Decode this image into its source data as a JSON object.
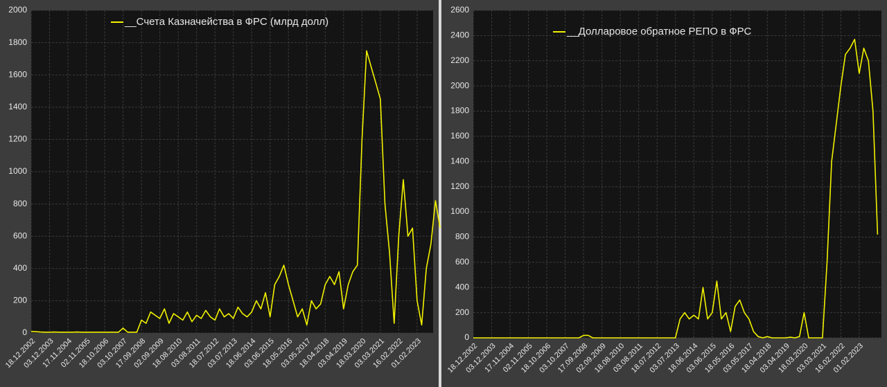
{
  "chart_data": [
    {
      "type": "line",
      "categories": [
        "18.12.2002",
        null,
        null,
        null,
        "03.12.2003",
        null,
        null,
        null,
        "17.11.2004",
        null,
        null,
        null,
        "02.11.2005",
        null,
        null,
        null,
        "18.10.2006",
        null,
        null,
        null,
        "03.10.2007",
        null,
        null,
        null,
        "17.09.2008",
        null,
        null,
        null,
        "02.09.2009",
        null,
        null,
        null,
        "18.08.2010",
        null,
        null,
        null,
        "03.08.2011",
        null,
        null,
        null,
        "18.07.2012",
        null,
        null,
        null,
        "03.07.2013",
        null,
        null,
        null,
        "18.06.2014",
        null,
        null,
        null,
        "03.06.2015",
        null,
        null,
        null,
        "18.05.2016",
        null,
        null,
        null,
        "03.05.2017",
        null,
        null,
        null,
        "18.04.2018",
        null,
        null,
        null,
        "03.04.2019",
        null,
        null,
        null,
        "18.03.2020",
        null,
        null,
        null,
        "03.03.2021",
        null,
        null,
        null,
        "16.02.2022",
        null,
        null,
        null,
        "01.02.2023",
        null,
        null,
        null,
        null,
        null
      ],
      "series": [
        {
          "name": "__Счета Казначейства в ФРС (млрд долл)",
          "color": "#f2f200",
          "values": [
            10,
            8,
            6,
            5,
            5,
            6,
            5,
            5,
            5,
            5,
            6,
            5,
            5,
            5,
            5,
            5,
            5,
            5,
            5,
            5,
            30,
            5,
            5,
            5,
            80,
            60,
            130,
            110,
            90,
            150,
            60,
            120,
            100,
            80,
            130,
            70,
            110,
            90,
            140,
            100,
            80,
            150,
            100,
            120,
            90,
            160,
            120,
            100,
            130,
            200,
            150,
            250,
            100,
            300,
            350,
            420,
            300,
            200,
            100,
            150,
            50,
            200,
            150,
            180,
            300,
            350,
            300,
            380,
            150,
            300,
            380,
            420,
            1200,
            1750,
            1650,
            1550,
            1450,
            800,
            500,
            60,
            600,
            950,
            600,
            650,
            200,
            50,
            400,
            550,
            820,
            650
          ]
        }
      ],
      "ylim": [
        0,
        2000
      ],
      "yticks": [
        0,
        200,
        400,
        600,
        800,
        1000,
        1200,
        1400,
        1600,
        1800,
        2000
      ],
      "grid": true
    },
    {
      "type": "line",
      "categories": [
        "18.12.2002",
        null,
        null,
        null,
        "03.12.2003",
        null,
        null,
        null,
        "17.11.2004",
        null,
        null,
        null,
        "02.11.2005",
        null,
        null,
        null,
        "18.10.2006",
        null,
        null,
        null,
        "03.10.2007",
        null,
        null,
        null,
        "17.09.2008",
        null,
        null,
        null,
        "02.09.2009",
        null,
        null,
        null,
        "18.08.2010",
        null,
        null,
        null,
        "03.08.2011",
        null,
        null,
        null,
        "18.07.2012",
        null,
        null,
        null,
        "03.07.2013",
        null,
        null,
        null,
        "18.06.2014",
        null,
        null,
        null,
        "03.06.2015",
        null,
        null,
        null,
        "18.05.2016",
        null,
        null,
        null,
        "03.05.2017",
        null,
        null,
        null,
        "18.04.2018",
        null,
        null,
        null,
        "03.04.2019",
        null,
        null,
        null,
        "18.03.2020",
        null,
        null,
        null,
        "03.03.2021",
        null,
        null,
        null,
        "16.02.2022",
        null,
        null,
        null,
        "01.02.2023",
        null,
        null,
        null,
        null
      ],
      "series": [
        {
          "name": "__Долларовое обратное РЕПО в ФРС",
          "color": "#f2f200",
          "values": [
            0,
            0,
            0,
            0,
            0,
            0,
            0,
            0,
            0,
            0,
            0,
            0,
            0,
            0,
            0,
            0,
            0,
            0,
            0,
            0,
            0,
            0,
            0,
            0,
            20,
            20,
            0,
            0,
            0,
            0,
            0,
            0,
            0,
            0,
            0,
            0,
            0,
            0,
            0,
            0,
            0,
            0,
            0,
            0,
            0,
            150,
            200,
            150,
            180,
            150,
            400,
            150,
            200,
            450,
            150,
            200,
            50,
            250,
            300,
            200,
            150,
            50,
            10,
            0,
            10,
            0,
            0,
            0,
            0,
            5,
            0,
            10,
            200,
            0,
            0,
            0,
            0,
            600,
            1400,
            1700,
            2000,
            2250,
            2300,
            2370,
            2100,
            2300,
            2200,
            1800,
            820
          ]
        }
      ],
      "ylim": [
        0,
        2600
      ],
      "yticks": [
        0,
        200,
        400,
        600,
        800,
        1000,
        1200,
        1400,
        1600,
        1800,
        2000,
        2200,
        2400,
        2600
      ],
      "grid": true
    }
  ]
}
